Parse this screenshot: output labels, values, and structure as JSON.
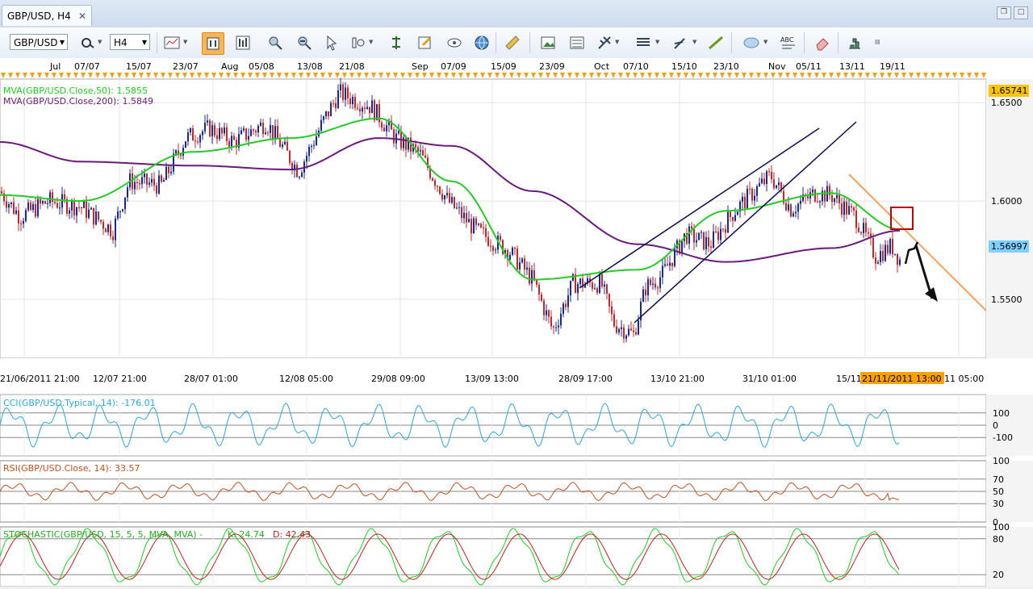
{
  "tab": {
    "title": "GBP/USD, H4",
    "close": "✕"
  },
  "toolbar": {
    "symbol": "GBP/USD",
    "timeframe": "H4",
    "icons": [
      "chart-type-icon",
      "pointer-icon",
      "magnifier-icon",
      "crosshair-icon",
      "zoom-icon",
      "vertical-line-icon",
      "properties-icon",
      "eye-icon",
      "globe-icon",
      "ruler-icon",
      "picture-icon",
      "template-icon",
      "fibonacci-icon",
      "bars-icon",
      "pencil-icon",
      "line-icon",
      "ellipse-icon",
      "text-abc-icon",
      "eraser-icon",
      "layers-icon"
    ]
  },
  "top_axis": {
    "labels": [
      "Jul",
      "07/07",
      "15/07",
      "23/07",
      "Aug",
      "05/08",
      "13/08",
      "21/08",
      "Sep",
      "07/09",
      "15/09",
      "23/09",
      "Oct",
      "07/10",
      "15/10",
      "23/10",
      "Nov",
      "05/11",
      "13/11",
      "19/11"
    ]
  },
  "main_chart": {
    "legend_ma50": "MVA(GBP/USD.Close,50): 1.5855",
    "legend_ma200": "MVA(GBP/USD.Close,200): 1.5849",
    "price_labels": [
      "1.6500",
      "1.6000",
      "1.5500"
    ],
    "price_high_tag": "1.65741",
    "price_current_tag": "1.56997",
    "colors": {
      "ma50": "#22cc22",
      "ma200": "#6a1a7a",
      "up": "#1a2a8c",
      "down": "#c0282d",
      "trend": "#0a0a50",
      "resistance": "#f0a060",
      "high_tag": "#ffc400",
      "current_tag": "#7fd0ff",
      "highlight_box": "#c00000"
    }
  },
  "bottom_axis": {
    "labels": [
      "21/06/2011 21:00",
      "12/07 21:00",
      "28/07 01:00",
      "12/08 05:00",
      "29/08 09:00",
      "13/09 13:00",
      "28/09 17:00",
      "13/10 21:00",
      "31/10 01:00",
      "15/11",
      "11 05:00"
    ],
    "highlight": "21/11/2011 13:00"
  },
  "chart_data": [
    {
      "type": "line",
      "title": "GBP/USD, H4",
      "x": [
        "21/06/2011 21:00",
        "12/07 21:00",
        "28/07 01:00",
        "12/08 05:00",
        "29/08 09:00",
        "13/09 13:00",
        "28/09 17:00",
        "13/10 21:00",
        "31/10 01:00",
        "15/11",
        "21/11/2011 13:00"
      ],
      "series": [
        {
          "name": "MVA(GBP/USD.Close,50)",
          "values": [
            1.603,
            1.6,
            1.625,
            1.632,
            1.642,
            1.61,
            1.56,
            1.565,
            1.595,
            1.604,
            1.5855
          ]
        },
        {
          "name": "MVA(GBP/USD.Close,200)",
          "values": [
            1.63,
            1.62,
            1.618,
            1.616,
            1.632,
            1.628,
            1.605,
            1.578,
            1.569,
            1.576,
            1.5849
          ]
        }
      ],
      "ylim": [
        1.52,
        1.662
      ],
      "price_marks": {
        "high": 1.65741,
        "current": 1.56997
      }
    },
    {
      "type": "line",
      "title": "CCI(GBP/USD.Typical, 14): -176.01",
      "levels": [
        "100",
        "0",
        "-100"
      ],
      "current": -176.01
    },
    {
      "type": "line",
      "title": "RSI(GBP/USD.Close, 14): 33.57",
      "levels": [
        "100",
        "70",
        "50",
        "30",
        "0"
      ],
      "current": 33.57
    },
    {
      "type": "line",
      "title": "STOCHASTIC(GBP/USD, 15, 5, 5, MVA, MVA) -",
      "k_label": "K: 24.74",
      "d_label": "D: 42.43",
      "levels": [
        "100",
        "80",
        "20"
      ]
    }
  ],
  "cci": {
    "legend": "CCI(GBP/USD.Typical, 14): -176.01",
    "levels": [
      "100",
      "0",
      "-100"
    ]
  },
  "rsi": {
    "legend": "RSI(GBP/USD.Close, 14): 33.57",
    "levels": [
      "100",
      "70",
      "50",
      "30",
      "0"
    ]
  },
  "stoch": {
    "legend": "STOCHASTIC(GBP/USD, 15, 5, 5, MVA, MVA) -",
    "k": "K: 24.74",
    "d": "D: 42.43",
    "levels": [
      "100",
      "80",
      "20"
    ]
  }
}
